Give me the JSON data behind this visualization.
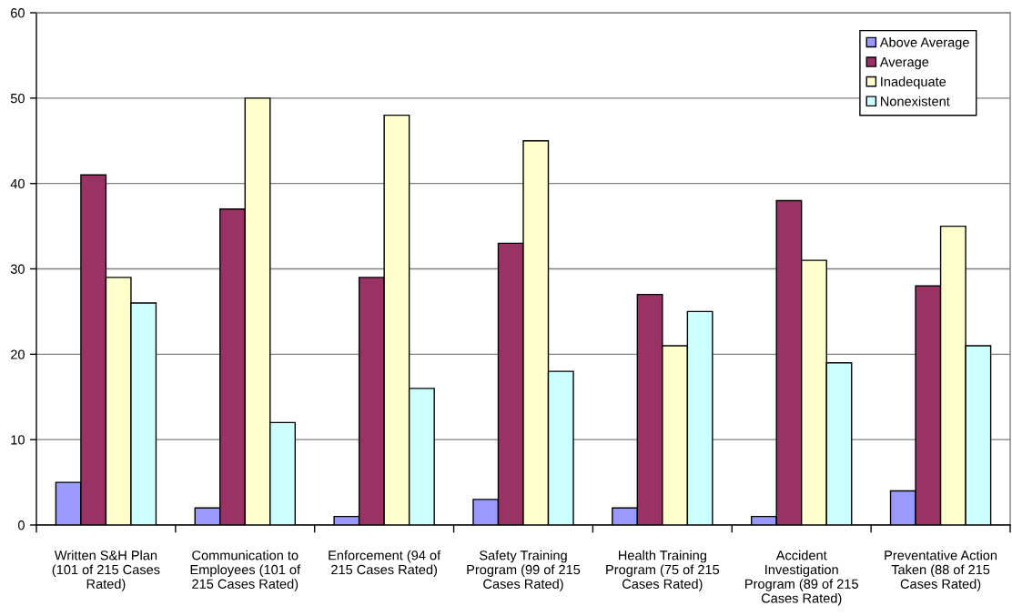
{
  "chart_data": {
    "type": "bar",
    "categories": [
      "Written S&H Plan\n(101 of 215 Cases\nRated)",
      "Communication to\nEmployees (101 of\n215 Cases Rated)",
      "Enforcement (94 of\n215 Cases Rated)",
      "Safety Training\nProgram (99 of 215\nCases Rated)",
      "Health Training\nProgram (75 of 215\nCases Rated)",
      "Accident\nInvestigation\nProgram (89 of 215\nCases Rated)",
      "Preventative Action\nTaken (88 of 215\nCases Rated)"
    ],
    "series": [
      {
        "name": "Above Average",
        "color": "#9999ff",
        "values": [
          5,
          2,
          1,
          3,
          2,
          1,
          4
        ]
      },
      {
        "name": "Average",
        "color": "#993366",
        "values": [
          41,
          37,
          29,
          33,
          27,
          38,
          28
        ]
      },
      {
        "name": "Inadequate",
        "color": "#ffffcc",
        "values": [
          29,
          50,
          48,
          45,
          21,
          31,
          35
        ]
      },
      {
        "name": "Nonexistent",
        "color": "#ccffff",
        "values": [
          26,
          12,
          16,
          18,
          25,
          19,
          21
        ]
      }
    ],
    "ylim": [
      0,
      60
    ],
    "yticks": [
      0,
      10,
      20,
      30,
      40,
      50,
      60
    ],
    "grid": "y",
    "legend": "top right"
  }
}
